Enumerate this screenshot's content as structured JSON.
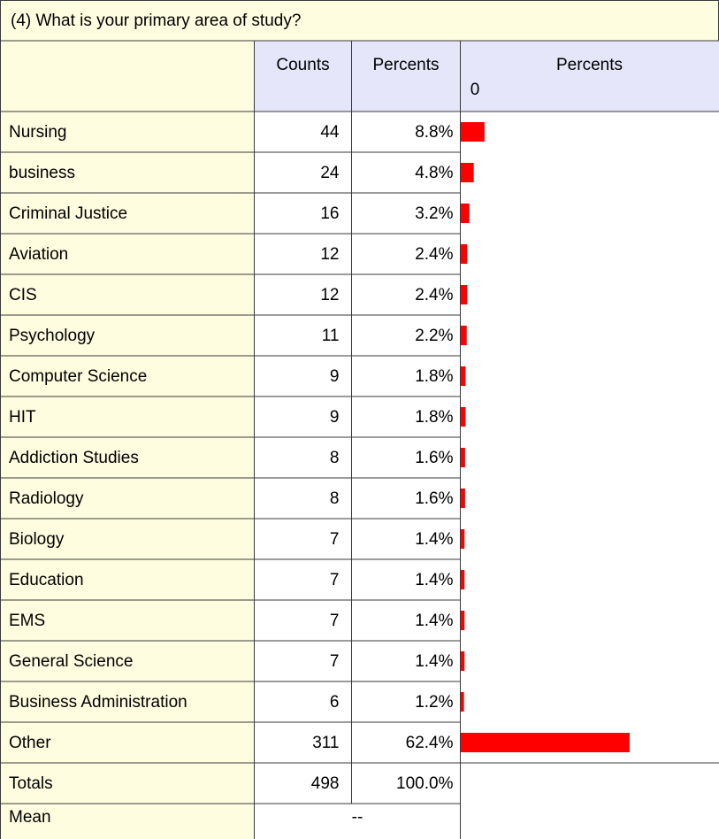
{
  "table": {
    "title": "(4)  What is your primary area of study?",
    "headers": [
      "Counts",
      "Percents",
      "Percents"
    ],
    "xlim": [
      0,
      100
    ],
    "xticks": [
      0,
      100
    ],
    "rows": [
      "Nursing",
      "business",
      "Criminal Justice",
      "Aviation",
      "CIS",
      "Psychology",
      "Computer Science",
      "HIT",
      "Addiction Studies",
      "Radiology",
      "Biology",
      "Education",
      "EMS",
      "General Science",
      "Business Administration",
      "Other"
    ],
    "counts": [
      44,
      24,
      16,
      12,
      12,
      11,
      9,
      9,
      8,
      8,
      7,
      7,
      7,
      7,
      6,
      311
    ],
    "percents": [
      8.8,
      4.8,
      3.2,
      2.4,
      2.4,
      2.2,
      1.8,
      1.8,
      1.6,
      1.6,
      1.4,
      1.4,
      1.4,
      1.4,
      1.2,
      62.4
    ],
    "percent_labels": [
      "8.8%",
      "4.8%",
      "3.2%",
      "2.4%",
      "2.4%",
      "2.2%",
      "1.8%",
      "1.8%",
      "1.6%",
      "1.6%",
      "1.4%",
      "1.4%",
      "1.4%",
      "1.4%",
      "1.2%",
      "62.4%"
    ],
    "bar_color": "#ff0000",
    "totals": {
      "label": "Totals",
      "count": 498,
      "percent": 100,
      "percent_label": "100.0%"
    },
    "mean": {
      "label": "Mean",
      "value": "--"
    }
  }
}
